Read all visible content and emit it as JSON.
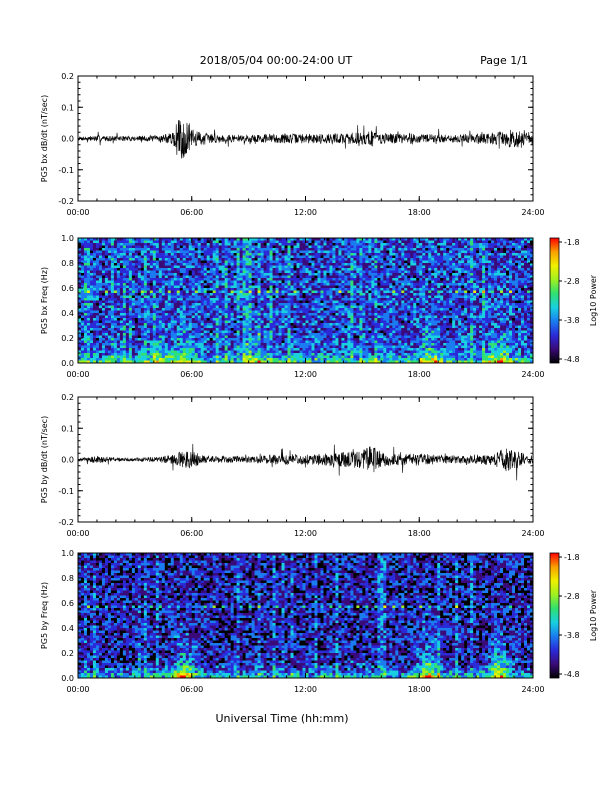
{
  "header": {
    "title": "2018/05/04  00:00-24:00 UT",
    "page": "Page 1/1"
  },
  "footer": {
    "xlabel": "Universal Time (hh:mm)"
  },
  "colors": {
    "trace": "#000000",
    "colormap": [
      "#000000",
      "#3a0a78",
      "#2a2ad8",
      "#1a7cf0",
      "#18d0e0",
      "#30e070",
      "#a0f020",
      "#f0f000",
      "#f8a000",
      "#ff0000"
    ]
  },
  "chart_data": [
    {
      "type": "line",
      "ylabel": "PG5 bx dB/dt (nT/sec)",
      "ylim": [
        -0.2,
        0.2
      ],
      "yticks": [
        "0.2",
        "0.1",
        "0.0",
        "-0.1",
        "-0.2"
      ],
      "xticks": [
        "00:00",
        "06:00",
        "12:00",
        "18:00",
        "24:00"
      ],
      "xlim_hours": [
        0,
        24
      ],
      "series": [
        {
          "x_hours": [
            0,
            1,
            2,
            3,
            4,
            5,
            5.25,
            5.5,
            5.75,
            6,
            6.5,
            7,
            8,
            9,
            10,
            11,
            12,
            13,
            14,
            15,
            15.5,
            16,
            17,
            17.5,
            18,
            19,
            20,
            21,
            22,
            22.5,
            23,
            23.5,
            24
          ],
          "amplitude": [
            0.006,
            0.01,
            0.008,
            0.008,
            0.01,
            0.018,
            0.06,
            0.07,
            0.05,
            0.03,
            0.022,
            0.015,
            0.012,
            0.012,
            0.014,
            0.016,
            0.015,
            0.016,
            0.018,
            0.02,
            0.028,
            0.018,
            0.015,
            0.02,
            0.013,
            0.014,
            0.013,
            0.016,
            0.02,
            0.025,
            0.03,
            0.03,
            0.02
          ]
        }
      ]
    },
    {
      "type": "heatmap",
      "ylabel": "PG5 bx Freq (Hz)",
      "ylim": [
        0.0,
        1.0
      ],
      "yticks": [
        "1.0",
        "0.8",
        "0.6",
        "0.4",
        "0.2",
        "0.0"
      ],
      "xticks": [
        "00:00",
        "06:00",
        "12:00",
        "18:00",
        "24:00"
      ],
      "xlim_hours": [
        0,
        24
      ],
      "colorbar": {
        "label": "Log10 Power",
        "ticks": [
          "-1.8",
          "-2.8",
          "-3.8",
          "-4.8"
        ],
        "range": [
          -4.8,
          -1.8
        ]
      },
      "base_log_power": -4.0,
      "features": [
        {
          "t_hours": 4.2,
          "log_power": -3.4
        },
        {
          "t_hours": 5.6,
          "log_power": -3.1
        },
        {
          "t_hours": 9.4,
          "log_power": -3.5
        },
        {
          "t_hours": 18.5,
          "log_power": -3.0
        },
        {
          "t_hours": 22.2,
          "log_power": -3.0
        }
      ]
    },
    {
      "type": "line",
      "ylabel": "PG5 by dB/dt (nT/sec)",
      "ylim": [
        -0.2,
        0.2
      ],
      "yticks": [
        "0.2",
        "0.1",
        "0.0",
        "-0.1",
        "-0.2"
      ],
      "xticks": [
        "00:00",
        "06:00",
        "12:00",
        "18:00",
        "24:00"
      ],
      "xlim_hours": [
        0,
        24
      ],
      "series": [
        {
          "x_hours": [
            0,
            1,
            2,
            3,
            4,
            5,
            5.5,
            6,
            6.5,
            7,
            8,
            9,
            10,
            11,
            12,
            13,
            14,
            15,
            15.5,
            16,
            16.5,
            17,
            18,
            18.5,
            19,
            20,
            21,
            22,
            22.5,
            23,
            23.5,
            24
          ],
          "amplitude": [
            0.004,
            0.012,
            0.006,
            0.006,
            0.007,
            0.015,
            0.03,
            0.028,
            0.015,
            0.012,
            0.012,
            0.01,
            0.014,
            0.018,
            0.016,
            0.02,
            0.024,
            0.03,
            0.045,
            0.025,
            0.02,
            0.018,
            0.02,
            0.018,
            0.014,
            0.012,
            0.015,
            0.02,
            0.04,
            0.035,
            0.02,
            0.012
          ]
        }
      ]
    },
    {
      "type": "heatmap",
      "ylabel": "PG5 by Freq (Hz)",
      "ylim": [
        0.0,
        1.0
      ],
      "yticks": [
        "1.0",
        "0.8",
        "0.6",
        "0.4",
        "0.2",
        "0.0"
      ],
      "xticks": [
        "00:00",
        "06:00",
        "12:00",
        "18:00",
        "24:00"
      ],
      "xlim_hours": [
        0,
        24
      ],
      "colorbar": {
        "label": "Log10 Power",
        "ticks": [
          "-1.8",
          "-2.8",
          "-3.8",
          "-4.8"
        ],
        "range": [
          -4.8,
          -1.8
        ]
      },
      "base_log_power": -4.2,
      "features": [
        {
          "t_hours": 5.6,
          "log_power": -2.9
        },
        {
          "t_hours": 18.5,
          "log_power": -2.9
        },
        {
          "t_hours": 22.2,
          "log_power": -3.0
        }
      ]
    }
  ]
}
